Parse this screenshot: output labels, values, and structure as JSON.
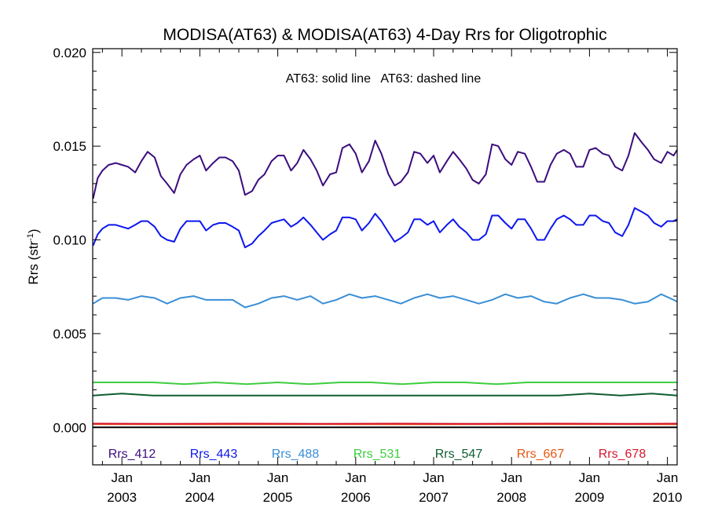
{
  "chart_data": {
    "type": "line",
    "title": "MODISA(AT63) & MODISA(AT63) 4-Day Rrs for Oligotrophic",
    "ylabel": "Rrs (str",
    "ylabel_sup": "-1",
    "ylabel_close": ")",
    "annotation": "AT63: solid line   AT63: dashed line",
    "ylim": [
      -0.002,
      0.0202
    ],
    "xlim": [
      2002.625,
      2010.125
    ],
    "y_ticks": [
      0.0,
      0.005,
      0.01,
      0.015,
      0.02
    ],
    "y_tick_labels": [
      "0.000",
      "0.005",
      "0.010",
      "0.015",
      "0.020"
    ],
    "x_ticks": [
      2003.0,
      2004.0,
      2005.0,
      2006.0,
      2007.0,
      2008.0,
      2009.0,
      2010.0
    ],
    "x_tick_month": "Jan",
    "x_tick_years": [
      "2003",
      "2004",
      "2005",
      "2006",
      "2007",
      "2008",
      "2009",
      "2010"
    ],
    "zero_line": 0.0,
    "series": [
      {
        "name": "Rrs_412",
        "color": "#3b0d7d",
        "x": [
          2002.63,
          2002.69,
          2002.75,
          2002.83,
          2002.92,
          2003.0,
          2003.08,
          2003.17,
          2003.25,
          2003.33,
          2003.42,
          2003.5,
          2003.58,
          2003.67,
          2003.75,
          2003.83,
          2003.92,
          2004.0,
          2004.08,
          2004.17,
          2004.25,
          2004.33,
          2004.42,
          2004.5,
          2004.58,
          2004.67,
          2004.75,
          2004.83,
          2004.92,
          2005.0,
          2005.08,
          2005.17,
          2005.25,
          2005.33,
          2005.42,
          2005.5,
          2005.58,
          2005.67,
          2005.75,
          2005.83,
          2005.92,
          2006.0,
          2006.08,
          2006.17,
          2006.25,
          2006.33,
          2006.42,
          2006.5,
          2006.58,
          2006.67,
          2006.75,
          2006.83,
          2006.92,
          2007.0,
          2007.08,
          2007.17,
          2007.25,
          2007.33,
          2007.42,
          2007.5,
          2007.58,
          2007.67,
          2007.75,
          2007.83,
          2007.92,
          2008.0,
          2008.08,
          2008.17,
          2008.25,
          2008.33,
          2008.42,
          2008.5,
          2008.58,
          2008.67,
          2008.75,
          2008.83,
          2008.92,
          2009.0,
          2009.08,
          2009.17,
          2009.25,
          2009.33,
          2009.42,
          2009.5,
          2009.58,
          2009.67,
          2009.75,
          2009.83,
          2009.92,
          2010.0,
          2010.08,
          2010.125
        ],
        "y": [
          0.0122,
          0.0133,
          0.0137,
          0.014,
          0.0141,
          0.014,
          0.0139,
          0.0136,
          0.0142,
          0.0147,
          0.0144,
          0.0134,
          0.013,
          0.0125,
          0.0135,
          0.014,
          0.0143,
          0.0145,
          0.0137,
          0.0141,
          0.0144,
          0.0144,
          0.0142,
          0.0137,
          0.0124,
          0.0126,
          0.0132,
          0.0135,
          0.0142,
          0.0145,
          0.0145,
          0.0137,
          0.0141,
          0.0148,
          0.0143,
          0.0137,
          0.0129,
          0.0135,
          0.0136,
          0.0149,
          0.0151,
          0.0146,
          0.0136,
          0.0142,
          0.0153,
          0.0146,
          0.0135,
          0.0129,
          0.0131,
          0.0136,
          0.0147,
          0.0146,
          0.0141,
          0.0145,
          0.0136,
          0.0142,
          0.0147,
          0.0143,
          0.0138,
          0.0132,
          0.013,
          0.0135,
          0.0151,
          0.015,
          0.0143,
          0.014,
          0.0147,
          0.0146,
          0.0139,
          0.0131,
          0.0131,
          0.014,
          0.0146,
          0.0148,
          0.0146,
          0.0139,
          0.0139,
          0.0148,
          0.0149,
          0.0146,
          0.0145,
          0.0139,
          0.0137,
          0.0145,
          0.0157,
          0.0152,
          0.0148,
          0.0143,
          0.0141,
          0.0147,
          0.0145,
          0.0148
        ]
      },
      {
        "name": "Rrs_443",
        "color": "#0d16ee",
        "x": [
          2002.63,
          2002.69,
          2002.75,
          2002.83,
          2002.92,
          2003.0,
          2003.08,
          2003.17,
          2003.25,
          2003.33,
          2003.42,
          2003.5,
          2003.58,
          2003.67,
          2003.75,
          2003.83,
          2003.92,
          2004.0,
          2004.08,
          2004.17,
          2004.25,
          2004.33,
          2004.42,
          2004.5,
          2004.58,
          2004.67,
          2004.75,
          2004.83,
          2004.92,
          2005.0,
          2005.08,
          2005.17,
          2005.25,
          2005.33,
          2005.42,
          2005.5,
          2005.58,
          2005.67,
          2005.75,
          2005.83,
          2005.92,
          2006.0,
          2006.08,
          2006.17,
          2006.25,
          2006.33,
          2006.42,
          2006.5,
          2006.58,
          2006.67,
          2006.75,
          2006.83,
          2006.92,
          2007.0,
          2007.08,
          2007.17,
          2007.25,
          2007.33,
          2007.42,
          2007.5,
          2007.58,
          2007.67,
          2007.75,
          2007.83,
          2007.92,
          2008.0,
          2008.08,
          2008.17,
          2008.25,
          2008.33,
          2008.42,
          2008.5,
          2008.58,
          2008.67,
          2008.75,
          2008.83,
          2008.92,
          2009.0,
          2009.08,
          2009.17,
          2009.25,
          2009.33,
          2009.42,
          2009.5,
          2009.58,
          2009.67,
          2009.75,
          2009.83,
          2009.92,
          2010.0,
          2010.08,
          2010.125
        ],
        "y": [
          0.0097,
          0.0103,
          0.0106,
          0.0108,
          0.0108,
          0.0107,
          0.0106,
          0.0108,
          0.011,
          0.011,
          0.0107,
          0.0102,
          0.01,
          0.0099,
          0.0106,
          0.011,
          0.011,
          0.011,
          0.0105,
          0.0108,
          0.0109,
          0.0109,
          0.0107,
          0.0105,
          0.0096,
          0.0098,
          0.0102,
          0.0105,
          0.0109,
          0.011,
          0.0111,
          0.0107,
          0.0109,
          0.0112,
          0.0108,
          0.0104,
          0.01,
          0.0103,
          0.0105,
          0.0112,
          0.0112,
          0.0111,
          0.0105,
          0.0109,
          0.0114,
          0.011,
          0.0104,
          0.0099,
          0.0101,
          0.0104,
          0.0111,
          0.0111,
          0.0108,
          0.011,
          0.0104,
          0.0108,
          0.0111,
          0.0107,
          0.0104,
          0.01,
          0.01,
          0.0103,
          0.0113,
          0.0113,
          0.0109,
          0.0106,
          0.0111,
          0.0111,
          0.0106,
          0.01,
          0.01,
          0.0106,
          0.0111,
          0.0113,
          0.0111,
          0.0108,
          0.0108,
          0.0113,
          0.0113,
          0.011,
          0.0109,
          0.0104,
          0.0102,
          0.0108,
          0.0117,
          0.0115,
          0.0113,
          0.0109,
          0.0107,
          0.011,
          0.011,
          0.0111
        ]
      },
      {
        "name": "Rrs_488",
        "color": "#3a8fd6",
        "x": [
          2002.63,
          2002.75,
          2002.92,
          2003.08,
          2003.25,
          2003.42,
          2003.58,
          2003.75,
          2003.92,
          2004.08,
          2004.25,
          2004.42,
          2004.58,
          2004.75,
          2004.92,
          2005.08,
          2005.25,
          2005.42,
          2005.58,
          2005.75,
          2005.92,
          2006.08,
          2006.25,
          2006.42,
          2006.58,
          2006.75,
          2006.92,
          2007.08,
          2007.25,
          2007.42,
          2007.58,
          2007.75,
          2007.92,
          2008.08,
          2008.25,
          2008.42,
          2008.58,
          2008.75,
          2008.92,
          2009.08,
          2009.25,
          2009.42,
          2009.58,
          2009.75,
          2009.92,
          2010.08,
          2010.125
        ],
        "y": [
          0.0066,
          0.0069,
          0.0069,
          0.0068,
          0.007,
          0.0069,
          0.0066,
          0.0069,
          0.007,
          0.0068,
          0.0068,
          0.0068,
          0.0064,
          0.0066,
          0.0069,
          0.007,
          0.0068,
          0.007,
          0.0066,
          0.0068,
          0.0071,
          0.0069,
          0.007,
          0.0068,
          0.0066,
          0.0069,
          0.0071,
          0.0069,
          0.007,
          0.0068,
          0.0066,
          0.0068,
          0.0071,
          0.0069,
          0.007,
          0.0067,
          0.0066,
          0.0069,
          0.0071,
          0.0069,
          0.0069,
          0.0068,
          0.0066,
          0.0067,
          0.0071,
          0.0068,
          0.0067
        ]
      },
      {
        "name": "Rrs_531",
        "color": "#3ecd3e",
        "x": [
          2002.63,
          2003.0,
          2003.4,
          2003.8,
          2004.2,
          2004.6,
          2005.0,
          2005.4,
          2005.8,
          2006.2,
          2006.6,
          2007.0,
          2007.4,
          2007.8,
          2008.2,
          2008.6,
          2009.0,
          2009.4,
          2009.8,
          2010.125
        ],
        "y": [
          0.0024,
          0.0024,
          0.0024,
          0.0023,
          0.0024,
          0.0023,
          0.0024,
          0.0023,
          0.0024,
          0.0024,
          0.0023,
          0.0024,
          0.0024,
          0.0023,
          0.0024,
          0.0024,
          0.0024,
          0.0024,
          0.0024,
          0.0024
        ]
      },
      {
        "name": "Rrs_547",
        "color": "#0e5d2f",
        "x": [
          2002.63,
          2003.0,
          2003.4,
          2003.8,
          2004.2,
          2004.6,
          2005.0,
          2005.4,
          2005.8,
          2006.2,
          2006.6,
          2007.0,
          2007.4,
          2007.8,
          2008.2,
          2008.6,
          2009.0,
          2009.4,
          2009.8,
          2010.125
        ],
        "y": [
          0.0017,
          0.0018,
          0.0017,
          0.0017,
          0.0017,
          0.0017,
          0.0017,
          0.0017,
          0.0017,
          0.0017,
          0.0017,
          0.0017,
          0.0017,
          0.0017,
          0.0017,
          0.0017,
          0.0018,
          0.0017,
          0.0018,
          0.0017
        ]
      },
      {
        "name": "Rrs_667",
        "color": "#e8570e",
        "x": [
          2002.63,
          2004.0,
          2005.5,
          2007.0,
          2008.5,
          2010.125
        ],
        "y": [
          0.00017,
          0.00016,
          0.00017,
          0.00016,
          0.00017,
          0.00016
        ]
      },
      {
        "name": "Rrs_678",
        "color": "#d7162e",
        "x": [
          2002.63,
          2003.5,
          2004.5,
          2005.5,
          2006.5,
          2007.5,
          2008.5,
          2009.5,
          2010.125
        ],
        "y": [
          0.0002,
          0.00019,
          0.0002,
          0.00019,
          0.0002,
          0.00019,
          0.0002,
          0.00019,
          0.0002
        ]
      }
    ],
    "legend": [
      {
        "name": "Rrs_412",
        "color": "#3b0d7d"
      },
      {
        "name": "Rrs_443",
        "color": "#0d16ee"
      },
      {
        "name": "Rrs_488",
        "color": "#3a8fd6"
      },
      {
        "name": "Rrs_531",
        "color": "#3ecd3e"
      },
      {
        "name": "Rrs_547",
        "color": "#0e5d2f"
      },
      {
        "name": "Rrs_667",
        "color": "#e8570e"
      },
      {
        "name": "Rrs_678",
        "color": "#d7162e"
      }
    ]
  }
}
